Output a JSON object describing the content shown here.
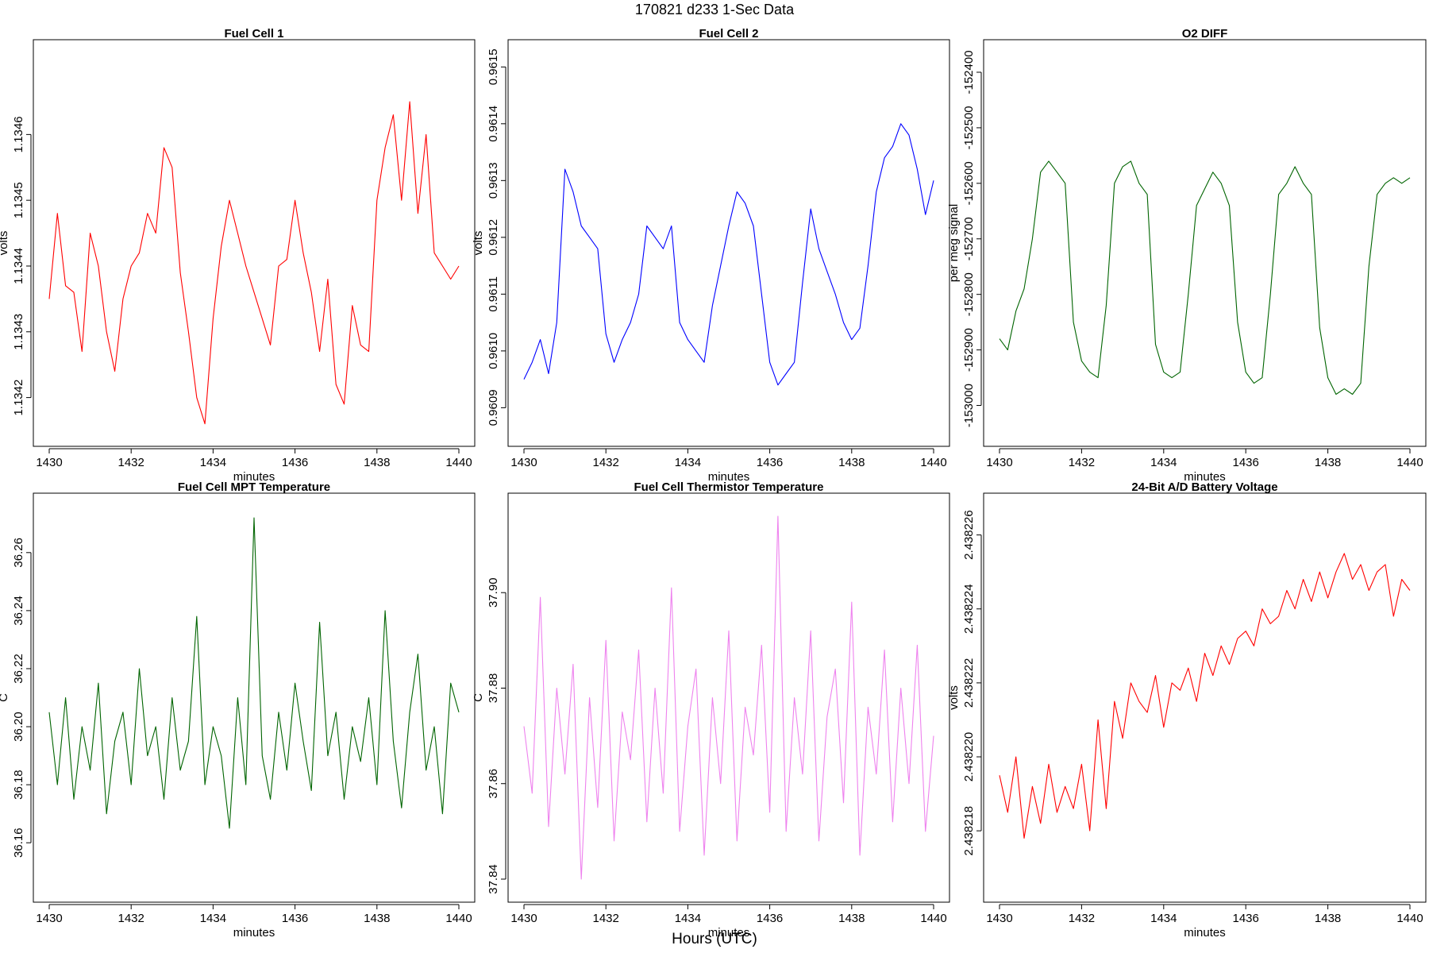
{
  "page": {
    "title": "170821   d233   1-Sec Data",
    "bottom_label": "Hours (UTC)"
  },
  "chart_data": [
    {
      "type": "line",
      "title": "Fuel Cell 1",
      "xlabel": "minutes",
      "ylabel": "volts",
      "xlim": [
        1430,
        1440
      ],
      "ylim": [
        1.13415,
        1.13472
      ],
      "xticks": [
        1430,
        1432,
        1434,
        1436,
        1438,
        1440
      ],
      "yticks": [
        1.1342,
        1.1343,
        1.1344,
        1.1345,
        1.1346
      ],
      "ytick_labels": [
        "1.1342",
        "1.1343",
        "1.1344",
        "1.1345",
        "1.1346"
      ],
      "color": "#ff0000",
      "series": [
        {
          "x": [
            1430.0,
            1430.2,
            1430.4,
            1430.6,
            1430.8,
            1431.0,
            1431.2,
            1431.4,
            1431.6,
            1431.8,
            1432.0,
            1432.2,
            1432.4,
            1432.6,
            1432.8,
            1433.0,
            1433.2,
            1433.4,
            1433.6,
            1433.8,
            1434.0,
            1434.2,
            1434.4,
            1434.6,
            1434.8,
            1435.0,
            1435.2,
            1435.4,
            1435.6,
            1435.8,
            1436.0,
            1436.2,
            1436.4,
            1436.6,
            1436.8,
            1437.0,
            1437.2,
            1437.4,
            1437.6,
            1437.8,
            1438.0,
            1438.2,
            1438.4,
            1438.6,
            1438.8,
            1439.0,
            1439.2,
            1439.4,
            1439.6,
            1439.8,
            1440.0
          ],
          "y": [
            1.13435,
            1.13448,
            1.13437,
            1.13436,
            1.13427,
            1.13445,
            1.1344,
            1.1343,
            1.13424,
            1.13435,
            1.1344,
            1.13442,
            1.13448,
            1.13445,
            1.13458,
            1.13455,
            1.13439,
            1.1343,
            1.1342,
            1.13416,
            1.13432,
            1.13443,
            1.1345,
            1.13445,
            1.1344,
            1.13436,
            1.13432,
            1.13428,
            1.1344,
            1.13441,
            1.1345,
            1.13442,
            1.13436,
            1.13427,
            1.13438,
            1.13422,
            1.13419,
            1.13434,
            1.13428,
            1.13427,
            1.1345,
            1.13458,
            1.13463,
            1.1345,
            1.13465,
            1.13448,
            1.1346,
            1.13442,
            1.1344,
            1.13438,
            1.1344
          ]
        }
      ]
    },
    {
      "type": "line",
      "title": "Fuel Cell 2",
      "xlabel": "minutes",
      "ylabel": "volts",
      "xlim": [
        1430,
        1440
      ],
      "ylim": [
        0.96086,
        0.96152
      ],
      "xticks": [
        1430,
        1432,
        1434,
        1436,
        1438,
        1440
      ],
      "yticks": [
        0.9609,
        0.961,
        0.9611,
        0.9612,
        0.9613,
        0.9614,
        0.9615
      ],
      "ytick_labels": [
        "0.9609",
        "0.9610",
        "0.9611",
        "0.9612",
        "0.9613",
        "0.9614",
        "0.9615"
      ],
      "color": "#0000ff",
      "series": [
        {
          "x": [
            1430.0,
            1430.2,
            1430.4,
            1430.6,
            1430.8,
            1431.0,
            1431.2,
            1431.4,
            1431.6,
            1431.8,
            1432.0,
            1432.2,
            1432.4,
            1432.6,
            1432.8,
            1433.0,
            1433.2,
            1433.4,
            1433.6,
            1433.8,
            1434.0,
            1434.2,
            1434.4,
            1434.6,
            1434.8,
            1435.0,
            1435.2,
            1435.4,
            1435.6,
            1435.8,
            1436.0,
            1436.2,
            1436.4,
            1436.6,
            1436.8,
            1437.0,
            1437.2,
            1437.4,
            1437.6,
            1437.8,
            1438.0,
            1438.2,
            1438.4,
            1438.6,
            1438.8,
            1439.0,
            1439.2,
            1439.4,
            1439.6,
            1439.8,
            1440.0
          ],
          "y": [
            0.96095,
            0.96098,
            0.96102,
            0.96096,
            0.96105,
            0.96132,
            0.96128,
            0.96122,
            0.9612,
            0.96118,
            0.96103,
            0.96098,
            0.96102,
            0.96105,
            0.9611,
            0.96122,
            0.9612,
            0.96118,
            0.96122,
            0.96105,
            0.96102,
            0.961,
            0.96098,
            0.96108,
            0.96115,
            0.96122,
            0.96128,
            0.96126,
            0.96122,
            0.9611,
            0.96098,
            0.96094,
            0.96096,
            0.96098,
            0.96112,
            0.96125,
            0.96118,
            0.96114,
            0.9611,
            0.96105,
            0.96102,
            0.96104,
            0.96115,
            0.96128,
            0.96134,
            0.96136,
            0.9614,
            0.96138,
            0.96132,
            0.96124,
            0.9613
          ]
        }
      ]
    },
    {
      "type": "line",
      "title": "O2 DIFF",
      "xlabel": "minutes",
      "ylabel": "per meg signal",
      "xlim": [
        1430,
        1440
      ],
      "ylim": [
        -153045,
        -152370
      ],
      "xticks": [
        1430,
        1432,
        1434,
        1436,
        1438,
        1440
      ],
      "yticks": [
        -153000,
        -152900,
        -152800,
        -152700,
        -152600,
        -152500,
        -152400
      ],
      "ytick_labels": [
        "-153000",
        "-152900",
        "-152800",
        "-152700",
        "-152600",
        "-152500",
        "-152400"
      ],
      "color": "#006400",
      "series": [
        {
          "x": [
            1430.0,
            1430.2,
            1430.4,
            1430.6,
            1430.8,
            1431.0,
            1431.2,
            1431.4,
            1431.6,
            1431.8,
            1432.0,
            1432.2,
            1432.4,
            1432.6,
            1432.8,
            1433.0,
            1433.2,
            1433.4,
            1433.6,
            1433.8,
            1434.0,
            1434.2,
            1434.4,
            1434.6,
            1434.8,
            1435.0,
            1435.2,
            1435.4,
            1435.6,
            1435.8,
            1436.0,
            1436.2,
            1436.4,
            1436.6,
            1436.8,
            1437.0,
            1437.2,
            1437.4,
            1437.6,
            1437.8,
            1438.0,
            1438.2,
            1438.4,
            1438.6,
            1438.8,
            1439.0,
            1439.2,
            1439.4,
            1439.6,
            1439.8,
            1440.0
          ],
          "y": [
            -152880,
            -152900,
            -152830,
            -152790,
            -152700,
            -152580,
            -152560,
            -152580,
            -152600,
            -152850,
            -152920,
            -152940,
            -152950,
            -152820,
            -152600,
            -152570,
            -152560,
            -152600,
            -152620,
            -152890,
            -152940,
            -152950,
            -152940,
            -152800,
            -152640,
            -152610,
            -152580,
            -152600,
            -152640,
            -152850,
            -152940,
            -152960,
            -152950,
            -152800,
            -152620,
            -152600,
            -152570,
            -152600,
            -152620,
            -152860,
            -152950,
            -152980,
            -152970,
            -152980,
            -152960,
            -152750,
            -152620,
            -152600,
            -152590,
            -152600,
            -152590
          ]
        }
      ]
    },
    {
      "type": "line",
      "title": "Fuel Cell MPT Temperature",
      "xlabel": "minutes",
      "ylabel": "C",
      "xlim": [
        1430,
        1440
      ],
      "ylim": [
        36.145,
        36.275
      ],
      "xticks": [
        1430,
        1432,
        1434,
        1436,
        1438,
        1440
      ],
      "yticks": [
        36.16,
        36.18,
        36.2,
        36.22,
        36.24,
        36.26
      ],
      "ytick_labels": [
        "36.16",
        "36.18",
        "36.20",
        "36.22",
        "36.24",
        "36.26"
      ],
      "color": "#006400",
      "series": [
        {
          "x": [
            1430.0,
            1430.2,
            1430.4,
            1430.6,
            1430.8,
            1431.0,
            1431.2,
            1431.4,
            1431.6,
            1431.8,
            1432.0,
            1432.2,
            1432.4,
            1432.6,
            1432.8,
            1433.0,
            1433.2,
            1433.4,
            1433.6,
            1433.8,
            1434.0,
            1434.2,
            1434.4,
            1434.6,
            1434.8,
            1435.0,
            1435.2,
            1435.4,
            1435.6,
            1435.8,
            1436.0,
            1436.2,
            1436.4,
            1436.6,
            1436.8,
            1437.0,
            1437.2,
            1437.4,
            1437.6,
            1437.8,
            1438.0,
            1438.2,
            1438.4,
            1438.6,
            1438.8,
            1439.0,
            1439.2,
            1439.4,
            1439.6,
            1439.8,
            1440.0
          ],
          "y": [
            36.205,
            36.18,
            36.21,
            36.175,
            36.2,
            36.185,
            36.215,
            36.17,
            36.195,
            36.205,
            36.18,
            36.22,
            36.19,
            36.2,
            36.175,
            36.21,
            36.185,
            36.195,
            36.238,
            36.18,
            36.2,
            36.19,
            36.165,
            36.21,
            36.18,
            36.272,
            36.19,
            36.175,
            36.205,
            36.185,
            36.215,
            36.195,
            36.178,
            36.236,
            36.19,
            36.205,
            36.175,
            36.2,
            36.188,
            36.21,
            36.18,
            36.24,
            36.195,
            36.172,
            36.205,
            36.225,
            36.185,
            36.2,
            36.17,
            36.215,
            36.205
          ]
        }
      ]
    },
    {
      "type": "line",
      "title": "Fuel Cell Thermistor Temperature",
      "xlabel": "minutes",
      "ylabel": "C",
      "xlim": [
        1430,
        1440
      ],
      "ylim": [
        37.8385,
        37.9175
      ],
      "xticks": [
        1430,
        1432,
        1434,
        1436,
        1438,
        1440
      ],
      "yticks": [
        37.84,
        37.86,
        37.88,
        37.9
      ],
      "ytick_labels": [
        "37.84",
        "37.86",
        "37.88",
        "37.90"
      ],
      "color": "#ee82ee",
      "series": [
        {
          "x": [
            1430.0,
            1430.2,
            1430.4,
            1430.6,
            1430.8,
            1431.0,
            1431.2,
            1431.4,
            1431.6,
            1431.8,
            1432.0,
            1432.2,
            1432.4,
            1432.6,
            1432.8,
            1433.0,
            1433.2,
            1433.4,
            1433.6,
            1433.8,
            1434.0,
            1434.2,
            1434.4,
            1434.6,
            1434.8,
            1435.0,
            1435.2,
            1435.4,
            1435.6,
            1435.8,
            1436.0,
            1436.2,
            1436.4,
            1436.6,
            1436.8,
            1437.0,
            1437.2,
            1437.4,
            1437.6,
            1437.8,
            1438.0,
            1438.2,
            1438.4,
            1438.6,
            1438.8,
            1439.0,
            1439.2,
            1439.4,
            1439.6,
            1439.8,
            1440.0
          ],
          "y": [
            37.872,
            37.858,
            37.899,
            37.851,
            37.88,
            37.862,
            37.885,
            37.84,
            37.878,
            37.855,
            37.89,
            37.848,
            37.875,
            37.865,
            37.888,
            37.852,
            37.88,
            37.858,
            37.901,
            37.85,
            37.872,
            37.884,
            37.845,
            37.878,
            37.86,
            37.892,
            37.848,
            37.876,
            37.866,
            37.889,
            37.854,
            37.916,
            37.85,
            37.878,
            37.862,
            37.892,
            37.848,
            37.874,
            37.884,
            37.856,
            37.898,
            37.845,
            37.876,
            37.862,
            37.888,
            37.852,
            37.88,
            37.86,
            37.889,
            37.85,
            37.87
          ]
        }
      ]
    },
    {
      "type": "line",
      "title": "24-Bit A/D Battery Voltage",
      "xlabel": "minutes",
      "ylabel": "volts",
      "xlim": [
        1430,
        1440
      ],
      "ylim": [
        2.4382165,
        2.4382267
      ],
      "xticks": [
        1430,
        1432,
        1434,
        1436,
        1438,
        1440
      ],
      "yticks": [
        2.438218,
        2.43822,
        2.438222,
        2.438224,
        2.438226
      ],
      "ytick_labels": [
        "2.438218",
        "2.438220",
        "2.438222",
        "2.438224",
        "2.438226"
      ],
      "color": "#ff0000",
      "series": [
        {
          "x": [
            1430.0,
            1430.2,
            1430.4,
            1430.6,
            1430.8,
            1431.0,
            1431.2,
            1431.4,
            1431.6,
            1431.8,
            1432.0,
            1432.2,
            1432.4,
            1432.6,
            1432.8,
            1433.0,
            1433.2,
            1433.4,
            1433.6,
            1433.8,
            1434.0,
            1434.2,
            1434.4,
            1434.6,
            1434.8,
            1435.0,
            1435.2,
            1435.4,
            1435.6,
            1435.8,
            1436.0,
            1436.2,
            1436.4,
            1436.6,
            1436.8,
            1437.0,
            1437.2,
            1437.4,
            1437.6,
            1437.8,
            1438.0,
            1438.2,
            1438.4,
            1438.6,
            1438.8,
            1439.0,
            1439.2,
            1439.4,
            1439.6,
            1439.8,
            1440.0
          ],
          "y": [
            2.4382195,
            2.4382185,
            2.43822,
            2.4382178,
            2.4382192,
            2.4382182,
            2.4382198,
            2.4382185,
            2.4382192,
            2.4382186,
            2.4382198,
            2.438218,
            2.438221,
            2.4382186,
            2.4382215,
            2.4382205,
            2.438222,
            2.4382215,
            2.4382212,
            2.4382222,
            2.4382208,
            2.438222,
            2.4382218,
            2.4382224,
            2.4382215,
            2.4382228,
            2.4382222,
            2.438223,
            2.4382225,
            2.4382232,
            2.4382234,
            2.438223,
            2.438224,
            2.4382236,
            2.4382238,
            2.4382245,
            2.438224,
            2.4382248,
            2.4382242,
            2.438225,
            2.4382243,
            2.438225,
            2.4382255,
            2.4382248,
            2.4382252,
            2.4382245,
            2.438225,
            2.4382252,
            2.4382238,
            2.4382248,
            2.4382245
          ]
        }
      ]
    }
  ]
}
